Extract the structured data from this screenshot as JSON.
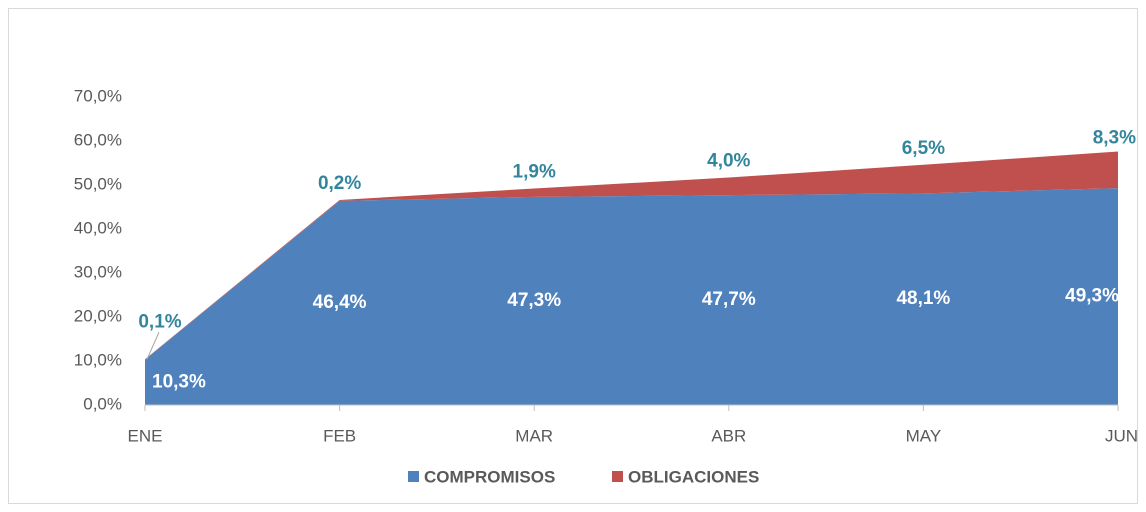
{
  "chart_data": {
    "type": "stacked_area",
    "categories": [
      "ENE",
      "FEB",
      "MAR",
      "ABR",
      "MAY",
      "JUN"
    ],
    "series": [
      {
        "name": "COMPROMISOS",
        "color": "#4f81bd",
        "values": [
          10.3,
          46.4,
          47.3,
          47.7,
          48.1,
          49.3
        ],
        "value_labels": [
          "10,3%",
          "46,4%",
          "47,3%",
          "47,7%",
          "48,1%",
          "49,3%"
        ]
      },
      {
        "name": "OBLIGACIONES",
        "color": "#c0504d",
        "values": [
          0.1,
          0.2,
          1.9,
          4.0,
          6.5,
          8.3
        ],
        "value_labels": [
          "0,1%",
          "0,2%",
          "1,9%",
          "4,0%",
          "6,5%",
          "8,3%"
        ]
      }
    ],
    "ylim": [
      0,
      70
    ],
    "yticks": [
      {
        "value": 0,
        "label": "0,0%"
      },
      {
        "value": 10,
        "label": "10,0%"
      },
      {
        "value": 20,
        "label": "20,0%"
      },
      {
        "value": 30,
        "label": "30,0%"
      },
      {
        "value": 40,
        "label": "40,0%"
      },
      {
        "value": 50,
        "label": "50,0%"
      },
      {
        "value": 60,
        "label": "60,0%"
      },
      {
        "value": 70,
        "label": "70,0%"
      }
    ],
    "legend": "bottom"
  }
}
